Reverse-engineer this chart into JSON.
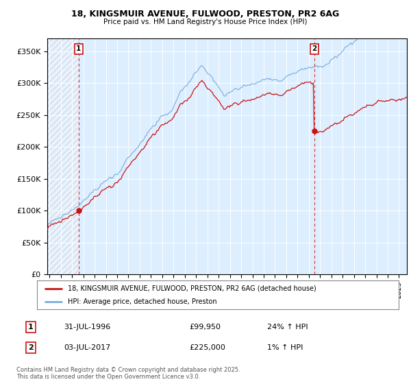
{
  "title_line1": "18, KINGSMUIR AVENUE, FULWOOD, PRESTON, PR2 6AG",
  "title_line2": "Price paid vs. HM Land Registry's House Price Index (HPI)",
  "ylim": [
    0,
    370000
  ],
  "xlim_start": 1993.8,
  "xlim_end": 2025.7,
  "yticks": [
    0,
    50000,
    100000,
    150000,
    200000,
    250000,
    300000,
    350000
  ],
  "ytick_labels": [
    "£0",
    "£50K",
    "£100K",
    "£150K",
    "£200K",
    "£250K",
    "£300K",
    "£350K"
  ],
  "sale1_x": 1996.58,
  "sale1_y": 99950,
  "sale2_x": 2017.5,
  "sale2_y": 225000,
  "hpi_color": "#7aaddb",
  "price_color": "#cc1111",
  "chart_bg_color": "#ddeeff",
  "grid_color": "#ffffff",
  "legend_label1": "18, KINGSMUIR AVENUE, FULWOOD, PRESTON, PR2 6AG (detached house)",
  "legend_label2": "HPI: Average price, detached house, Preston",
  "annotation1_label": "1",
  "annotation2_label": "2",
  "table_row1": [
    "1",
    "31-JUL-1996",
    "£99,950",
    "24% ↑ HPI"
  ],
  "table_row2": [
    "2",
    "03-JUL-2017",
    "£225,000",
    "1% ↑ HPI"
  ],
  "footer": "Contains HM Land Registry data © Crown copyright and database right 2025.\nThis data is licensed under the Open Government Licence v3.0."
}
